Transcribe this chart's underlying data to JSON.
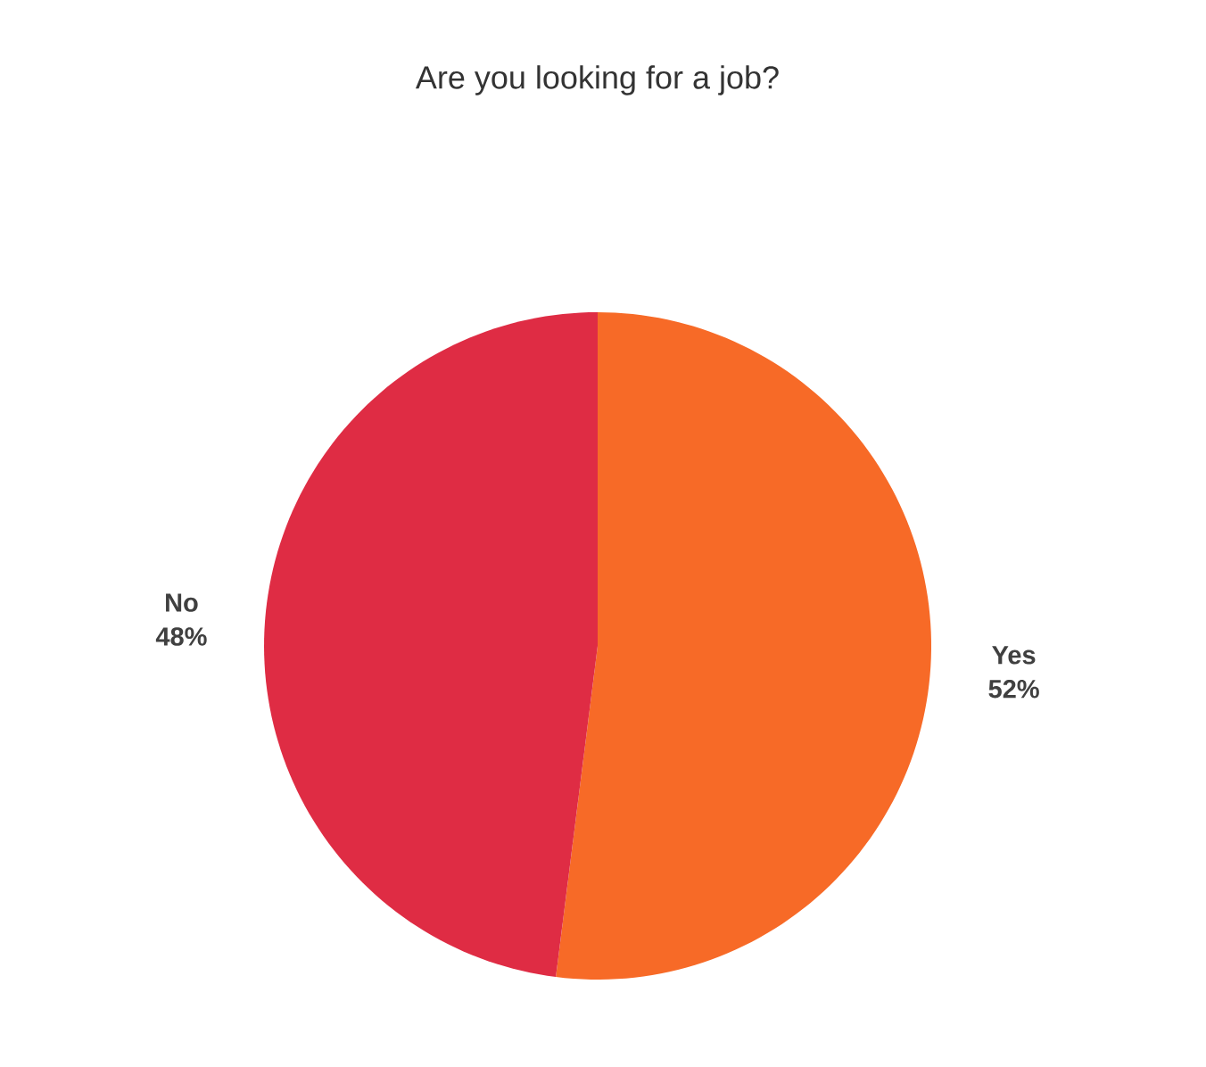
{
  "chart_data": {
    "type": "pie",
    "title": "Are you looking for a job?",
    "categories": [
      "Yes",
      "No"
    ],
    "values": [
      52,
      48
    ],
    "value_labels": [
      "52%",
      "48%"
    ],
    "colors": [
      "#f76a27",
      "#df2c44"
    ]
  }
}
